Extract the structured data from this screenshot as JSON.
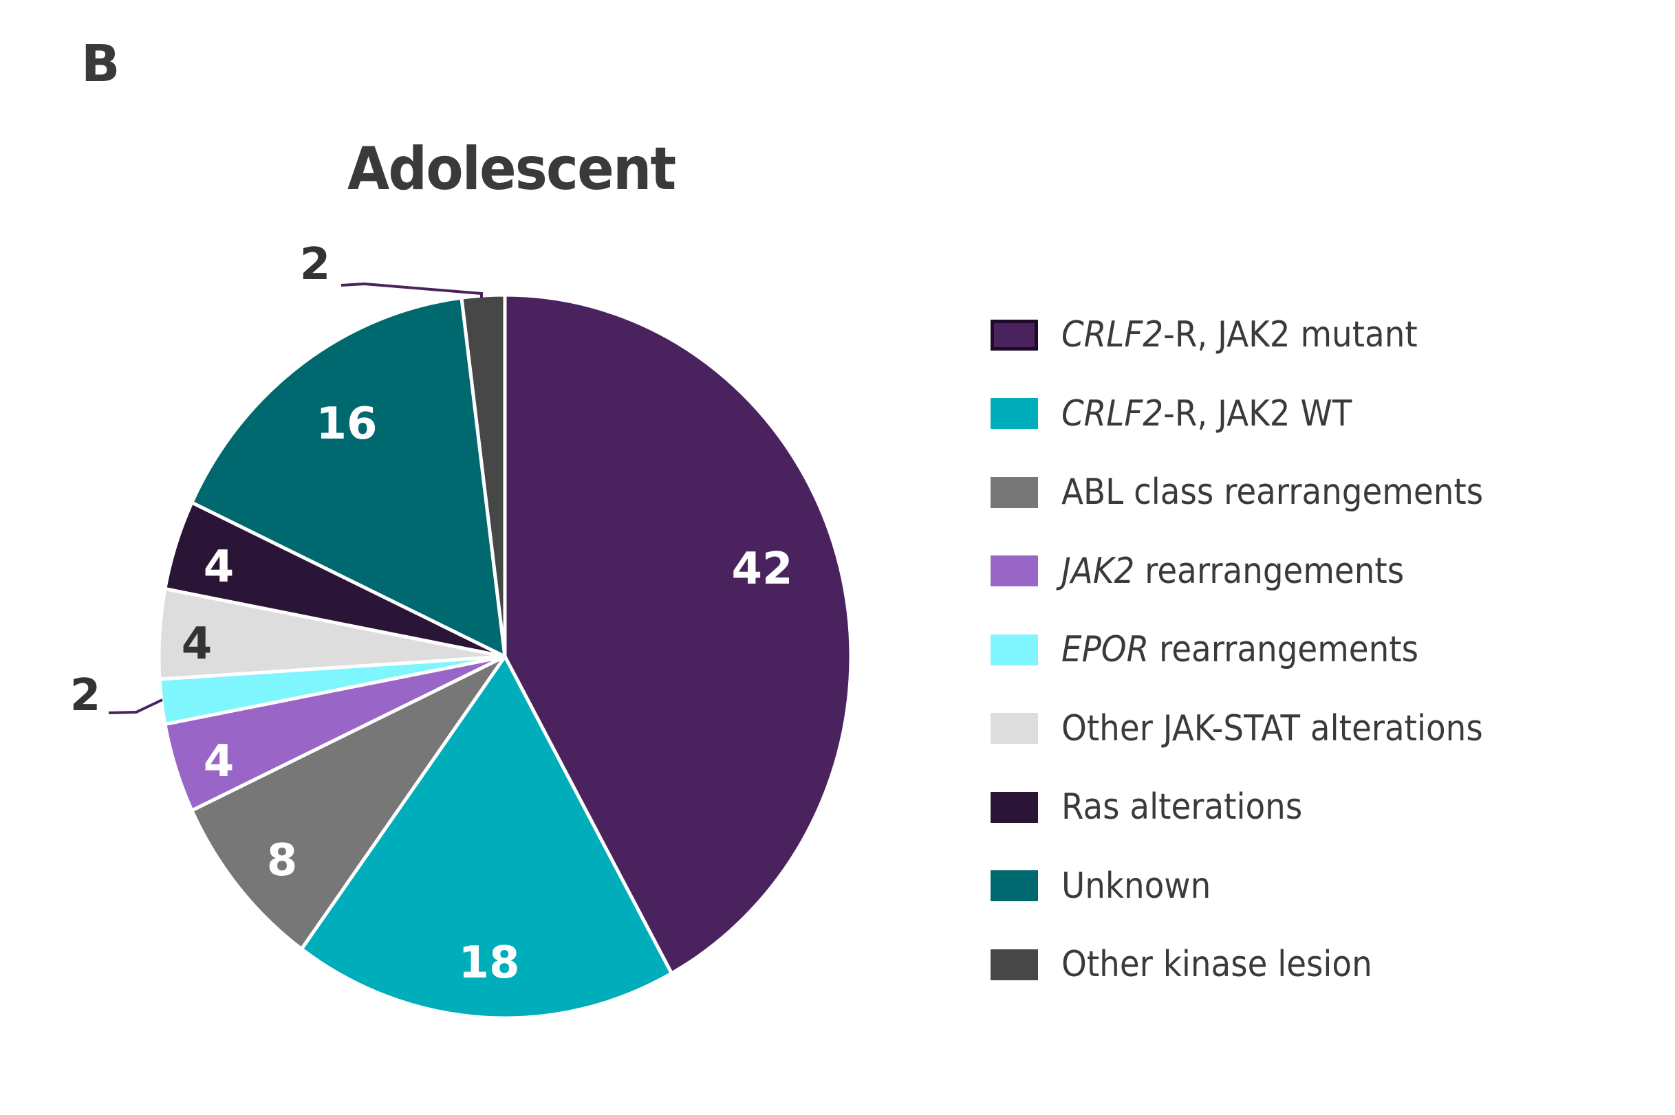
{
  "panel_letter": "B",
  "chart_data": {
    "type": "pie",
    "title": "Adolescent",
    "unit": "percent",
    "start": "top, clockwise",
    "slices": [
      {
        "label": "CRLF2-R, JAK2 mutant",
        "italic": "CRLF2",
        "rest": "-R, JAK2 mutant",
        "value": 42,
        "color": "#4a235e",
        "label_color": "#ffffff"
      },
      {
        "label": "CRLF2-R, JAK2 WT",
        "italic": "CRLF2",
        "rest": "-R, JAK2 WT",
        "value": 18,
        "color": "#00adba",
        "label_color": "#ffffff"
      },
      {
        "label": "ABL class rearrangements",
        "italic": "",
        "rest": "ABL class rearrangements",
        "value": 8,
        "color": "#777777",
        "label_color": "#ffffff"
      },
      {
        "label": "JAK2 rearrangements",
        "italic": "JAK2",
        "rest": " rearrangements",
        "value": 4,
        "color": "#9966c8",
        "label_color": "#ffffff"
      },
      {
        "label": "EPOR rearrangements",
        "italic": "EPOR",
        "rest": " rearrangements",
        "value": 2,
        "color": "#7ff5fd",
        "label_color": "#333333"
      },
      {
        "label": "Other JAK-STAT alterations",
        "italic": "",
        "rest": "Other JAK-STAT alterations",
        "value": 4,
        "color": "#dddddd",
        "label_color": "#333333"
      },
      {
        "label": "Ras alterations",
        "italic": "",
        "rest": "Ras alterations",
        "value": 4,
        "color": "#2b1536",
        "label_color": "#ffffff"
      },
      {
        "label": "Unknown",
        "italic": "",
        "rest": "Unknown",
        "value": 16,
        "color": "#006970",
        "label_color": "#ffffff"
      },
      {
        "label": "Other kinase lesion",
        "italic": "",
        "rest": "Other kinase lesion",
        "value": 2,
        "color": "#474747",
        "label_color": "#333333"
      }
    ],
    "legend_position": "right",
    "leader_line_color": "#4a235e"
  }
}
